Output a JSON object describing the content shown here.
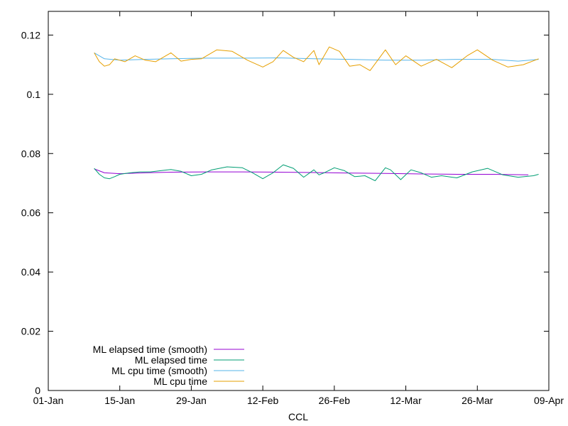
{
  "chart_data": {
    "type": "line",
    "xlabel": "CCL",
    "ylabel": "",
    "x_ticks": [
      "01-Jan",
      "15-Jan",
      "29-Jan",
      "12-Feb",
      "26-Feb",
      "12-Mar",
      "26-Mar",
      "09-Apr"
    ],
    "y_ticks": [
      "0",
      "0.02",
      "0.04",
      "0.06",
      "0.08",
      "0.1",
      "0.12"
    ],
    "xlim": [
      "01-Jan",
      "09-Apr"
    ],
    "ylim": [
      0,
      0.128
    ],
    "grid": false,
    "legend_position": "bottom-left",
    "series": [
      {
        "name": "ML elapsed time (smooth)",
        "color": "#9400d3",
        "points": [
          [
            "10-Jan",
            0.0748
          ],
          [
            "12-Jan",
            0.0735
          ],
          [
            "15-Jan",
            0.0732
          ],
          [
            "20-Jan",
            0.0735
          ],
          [
            "25-Jan",
            0.0737
          ],
          [
            "01-Feb",
            0.0738
          ],
          [
            "08-Feb",
            0.0738
          ],
          [
            "15-Feb",
            0.0737
          ],
          [
            "22-Feb",
            0.0736
          ],
          [
            "01-Mar",
            0.0734
          ],
          [
            "08-Mar",
            0.0733
          ],
          [
            "15-Mar",
            0.0731
          ],
          [
            "22-Mar",
            0.073
          ],
          [
            "29-Mar",
            0.073
          ],
          [
            "05-Apr",
            0.0728
          ]
        ]
      },
      {
        "name": "ML elapsed time",
        "color": "#009e73",
        "points": [
          [
            "10-Jan",
            0.075
          ],
          [
            "11-Jan",
            0.073
          ],
          [
            "12-Jan",
            0.0718
          ],
          [
            "13-Jan",
            0.0715
          ],
          [
            "14-Jan",
            0.0722
          ],
          [
            "15-Jan",
            0.073
          ],
          [
            "17-Jan",
            0.0735
          ],
          [
            "19-Jan",
            0.0738
          ],
          [
            "21-Jan",
            0.0738
          ],
          [
            "23-Jan",
            0.0742
          ],
          [
            "25-Jan",
            0.0746
          ],
          [
            "27-Jan",
            0.074
          ],
          [
            "29-Jan",
            0.0725
          ],
          [
            "31-Jan",
            0.073
          ],
          [
            "02-Feb",
            0.0745
          ],
          [
            "05-Feb",
            0.0755
          ],
          [
            "08-Feb",
            0.0752
          ],
          [
            "10-Feb",
            0.0735
          ],
          [
            "12-Feb",
            0.0715
          ],
          [
            "14-Feb",
            0.0735
          ],
          [
            "16-Feb",
            0.0762
          ],
          [
            "18-Feb",
            0.075
          ],
          [
            "20-Feb",
            0.072
          ],
          [
            "22-Feb",
            0.0745
          ],
          [
            "23-Feb",
            0.0728
          ],
          [
            "24-Feb",
            0.0735
          ],
          [
            "26-Feb",
            0.0752
          ],
          [
            "28-Feb",
            0.0742
          ],
          [
            "02-Mar",
            0.0722
          ],
          [
            "04-Mar",
            0.0725
          ],
          [
            "06-Mar",
            0.0708
          ],
          [
            "08-Mar",
            0.0752
          ],
          [
            "09-Mar",
            0.0745
          ],
          [
            "11-Mar",
            0.0712
          ],
          [
            "13-Mar",
            0.0745
          ],
          [
            "15-Mar",
            0.0735
          ],
          [
            "17-Mar",
            0.072
          ],
          [
            "19-Mar",
            0.0725
          ],
          [
            "22-Mar",
            0.0718
          ],
          [
            "25-Mar",
            0.0738
          ],
          [
            "28-Mar",
            0.075
          ],
          [
            "31-Mar",
            0.0728
          ],
          [
            "03-Apr",
            0.072
          ],
          [
            "06-Apr",
            0.0725
          ],
          [
            "07-Apr",
            0.073
          ]
        ]
      },
      {
        "name": "ML cpu time (smooth)",
        "color": "#56b4e9",
        "points": [
          [
            "10-Jan",
            0.114
          ],
          [
            "12-Jan",
            0.112
          ],
          [
            "15-Jan",
            0.1115
          ],
          [
            "20-Jan",
            0.1118
          ],
          [
            "25-Jan",
            0.112
          ],
          [
            "01-Feb",
            0.1122
          ],
          [
            "08-Feb",
            0.1122
          ],
          [
            "15-Feb",
            0.1123
          ],
          [
            "22-Feb",
            0.112
          ],
          [
            "01-Mar",
            0.1118
          ],
          [
            "08-Mar",
            0.1115
          ],
          [
            "15-Mar",
            0.1115
          ],
          [
            "22-Mar",
            0.1118
          ],
          [
            "29-Mar",
            0.1118
          ],
          [
            "03-Apr",
            0.1112
          ],
          [
            "07-Apr",
            0.1118
          ]
        ]
      },
      {
        "name": "ML cpu time",
        "color": "#e69f00",
        "points": [
          [
            "10-Jan",
            0.114
          ],
          [
            "11-Jan",
            0.111
          ],
          [
            "12-Jan",
            0.1095
          ],
          [
            "13-Jan",
            0.11
          ],
          [
            "14-Jan",
            0.112
          ],
          [
            "15-Jan",
            0.1115
          ],
          [
            "16-Jan",
            0.111
          ],
          [
            "18-Jan",
            0.113
          ],
          [
            "20-Jan",
            0.1115
          ],
          [
            "22-Jan",
            0.111
          ],
          [
            "25-Jan",
            0.114
          ],
          [
            "27-Jan",
            0.1112
          ],
          [
            "29-Jan",
            0.1118
          ],
          [
            "31-Jan",
            0.112
          ],
          [
            "03-Feb",
            0.115
          ],
          [
            "06-Feb",
            0.1145
          ],
          [
            "09-Feb",
            0.1115
          ],
          [
            "12-Feb",
            0.1092
          ],
          [
            "14-Feb",
            0.111
          ],
          [
            "16-Feb",
            0.1148
          ],
          [
            "18-Feb",
            0.1125
          ],
          [
            "20-Feb",
            0.111
          ],
          [
            "22-Feb",
            0.1148
          ],
          [
            "23-Feb",
            0.11
          ],
          [
            "25-Feb",
            0.116
          ],
          [
            "27-Feb",
            0.1145
          ],
          [
            "01-Mar",
            0.1095
          ],
          [
            "03-Mar",
            0.11
          ],
          [
            "05-Mar",
            0.108
          ],
          [
            "08-Mar",
            0.115
          ],
          [
            "10-Mar",
            0.11
          ],
          [
            "12-Mar",
            0.113
          ],
          [
            "15-Mar",
            0.1095
          ],
          [
            "18-Mar",
            0.1118
          ],
          [
            "21-Mar",
            0.109
          ],
          [
            "24-Mar",
            0.113
          ],
          [
            "26-Mar",
            0.115
          ],
          [
            "29-Mar",
            0.1115
          ],
          [
            "01-Apr",
            0.1092
          ],
          [
            "04-Apr",
            0.11
          ],
          [
            "07-Apr",
            0.112
          ]
        ]
      }
    ]
  }
}
